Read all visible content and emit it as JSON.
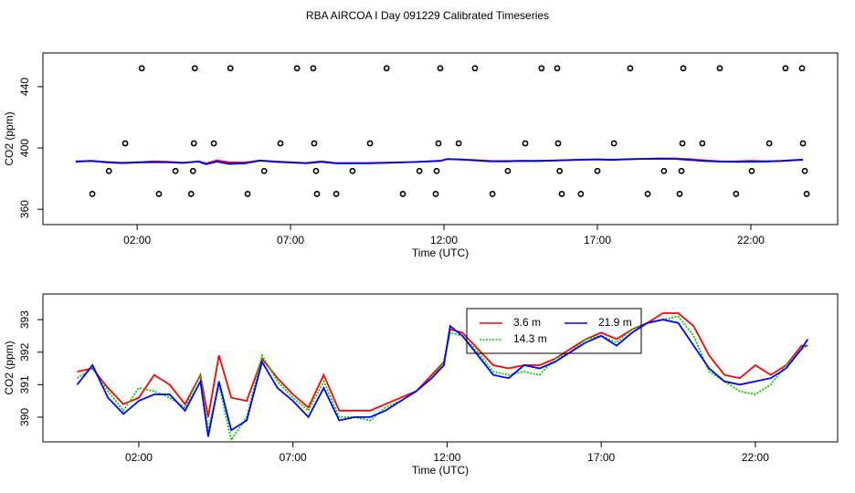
{
  "chart_data": [
    {
      "type": "scatter",
      "title": "RBA AIRCOA I  Day 091229  Calibrated Timeseries",
      "xlabel": "Time (UTC)",
      "ylabel": "CO2 (ppm)",
      "color": "#000000",
      "x": [
        2.15,
        3.88,
        5.04,
        7.21,
        7.74,
        10.13,
        11.88,
        13.01,
        15.18,
        15.69,
        18.07,
        19.8,
        20.99,
        23.13,
        23.67,
        1.61,
        3.85,
        4.5,
        6.67,
        7.77,
        9.59,
        11.82,
        12.48,
        14.65,
        15.72,
        17.54,
        19.77,
        20.42,
        22.6,
        23.7,
        1.08,
        3.25,
        3.82,
        6.14,
        7.83,
        9.02,
        11.2,
        11.76,
        14.08,
        15.77,
        17.0,
        19.17,
        19.74,
        22.03,
        23.76,
        0.54,
        2.71,
        3.76,
        5.6,
        7.86,
        8.49,
        10.66,
        11.73,
        13.58,
        15.84,
        16.46,
        18.64,
        19.68,
        21.52,
        23.82
      ],
      "values": [
        452,
        452,
        452,
        452,
        452,
        452,
        452,
        452,
        452,
        452,
        452,
        452,
        452,
        452,
        452,
        403,
        403,
        403,
        403,
        403,
        403,
        403,
        403,
        403,
        403,
        403,
        403,
        403,
        403,
        403,
        385,
        385,
        385,
        385,
        385,
        385,
        385,
        385,
        385,
        385,
        385,
        385,
        385,
        385,
        385,
        370,
        370,
        370,
        370,
        370,
        370,
        370,
        370,
        370,
        370,
        370,
        370,
        370,
        370,
        370
      ],
      "xlim": [
        -1.07,
        24.83
      ],
      "ylim": [
        350,
        462
      ],
      "xticks": [
        {
          "value": 2,
          "label": "02:00"
        },
        {
          "value": 7,
          "label": "07:00"
        },
        {
          "value": 12,
          "label": "12:00"
        },
        {
          "value": 17,
          "label": "17:00"
        },
        {
          "value": 22,
          "label": "22:00"
        }
      ],
      "yticks": [
        360,
        400,
        440
      ]
    },
    {
      "type": "line",
      "xlabel": "Time (UTC)",
      "ylabel": "CO2 (ppm)",
      "legend": "top",
      "x": [
        0,
        0.5,
        1,
        1.5,
        2,
        2.5,
        3,
        3.5,
        4,
        4.25,
        4.6,
        5,
        5.5,
        6,
        6.5,
        7,
        7.5,
        8,
        8.5,
        9,
        9.5,
        10,
        10.5,
        11,
        11.5,
        11.9,
        12.1,
        12.5,
        13,
        13.5,
        14,
        14.5,
        15,
        15.5,
        16,
        16.5,
        17,
        17.5,
        18,
        18.5,
        19,
        19.5,
        20,
        20.5,
        21,
        21.5,
        22,
        22.5,
        23,
        23.5,
        23.7
      ],
      "series": [
        {
          "name": "3.6 m",
          "color": "#ff0000",
          "dash": "solid",
          "values": [
            391.4,
            391.5,
            390.9,
            390.4,
            390.6,
            391.3,
            391.0,
            390.4,
            391.3,
            390.0,
            391.9,
            390.6,
            390.5,
            391.8,
            391.2,
            390.7,
            390.3,
            391.3,
            390.2,
            390.2,
            390.2,
            390.4,
            390.6,
            390.8,
            391.3,
            391.7,
            392.7,
            392.6,
            392.1,
            391.6,
            391.5,
            391.6,
            391.6,
            391.8,
            392.1,
            392.4,
            392.6,
            392.4,
            392.7,
            392.9,
            393.2,
            393.2,
            392.8,
            391.9,
            391.3,
            391.2,
            391.6,
            391.3,
            391.6,
            392.2,
            392.2
          ]
        },
        {
          "name": "14.3 m",
          "color": "#00cd00",
          "dash": "dotted",
          "values": [
            391.2,
            391.5,
            390.8,
            390.2,
            390.9,
            390.8,
            390.6,
            390.3,
            391.3,
            389.6,
            391.0,
            389.3,
            390.0,
            391.9,
            391.1,
            390.6,
            390.2,
            391.1,
            390.0,
            390.0,
            389.9,
            390.3,
            390.5,
            390.8,
            391.2,
            391.7,
            392.6,
            392.5,
            392.0,
            391.4,
            391.3,
            391.4,
            391.3,
            391.8,
            392.0,
            392.4,
            392.5,
            392.3,
            392.7,
            392.9,
            393.0,
            393.1,
            392.5,
            391.4,
            391.1,
            390.8,
            390.7,
            391.0,
            391.6,
            392.1,
            392.2
          ]
        },
        {
          "name": "21.9 m",
          "color": "#0000ff",
          "dash": "solid",
          "values": [
            391.0,
            391.6,
            390.6,
            390.1,
            390.5,
            390.7,
            390.7,
            390.2,
            391.1,
            389.4,
            391.1,
            389.6,
            389.9,
            391.7,
            390.9,
            390.5,
            390.0,
            390.9,
            389.9,
            390.0,
            390.0,
            390.2,
            390.5,
            390.8,
            391.2,
            391.6,
            392.8,
            392.5,
            391.9,
            391.3,
            391.2,
            391.6,
            391.5,
            391.7,
            392.0,
            392.3,
            392.5,
            392.2,
            392.6,
            392.9,
            393.0,
            392.9,
            392.2,
            391.5,
            391.1,
            391.0,
            391.1,
            391.2,
            391.5,
            392.1,
            392.4
          ]
        }
      ],
      "xlim": [
        -1.11,
        24.67
      ],
      "ylim": [
        389.24,
        393.79
      ],
      "xticks": [
        {
          "value": 2,
          "label": "02:00"
        },
        {
          "value": 7,
          "label": "07:00"
        },
        {
          "value": 12,
          "label": "12:00"
        },
        {
          "value": 17,
          "label": "17:00"
        },
        {
          "value": 22,
          "label": "22:00"
        }
      ],
      "yticks": [
        390,
        391,
        392,
        393
      ]
    }
  ]
}
